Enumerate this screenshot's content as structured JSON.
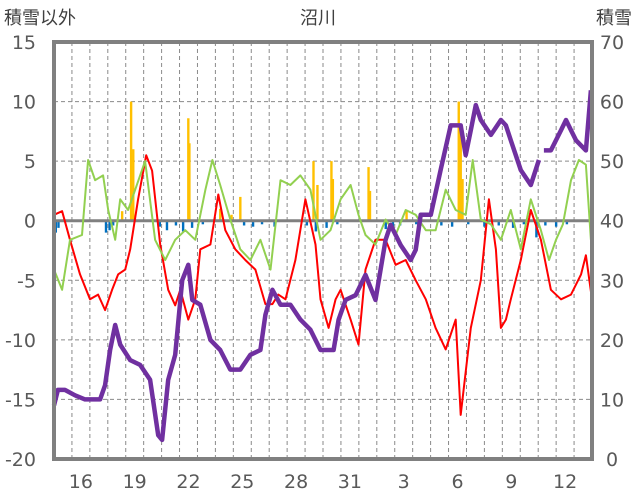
{
  "chart_data": {
    "type": "line",
    "title": "沼川",
    "ylabel_left": "積雪以外",
    "ylabel_right": "積雪",
    "ylim_left": [
      -20,
      15
    ],
    "ylim_right": [
      0,
      70
    ],
    "yticks_left": [
      "15",
      "10",
      "5",
      "0",
      "-5",
      "-10",
      "-15",
      "-20"
    ],
    "yticks_right": [
      "70",
      "60",
      "50",
      "40",
      "30",
      "20",
      "10",
      "0"
    ],
    "x_unit": "days since first plotted day",
    "xlim": [
      0,
      30
    ],
    "xticks": [
      {
        "x": 1.5,
        "label": "16"
      },
      {
        "x": 4.5,
        "label": "19"
      },
      {
        "x": 7.5,
        "label": "22"
      },
      {
        "x": 10.5,
        "label": "25"
      },
      {
        "x": 13.5,
        "label": "28"
      },
      {
        "x": 16.5,
        "label": "31"
      },
      {
        "x": 19.5,
        "label": "3"
      },
      {
        "x": 22.5,
        "label": "6"
      },
      {
        "x": 25.5,
        "label": "9"
      },
      {
        "x": 28.5,
        "label": "12"
      }
    ],
    "grid": true,
    "series": [
      {
        "name": "snow-depth",
        "axis": "right",
        "color": "#7030A0",
        "points": [
          [
            0,
            9
          ],
          [
            0.22,
            11.6
          ],
          [
            0.61,
            11.6
          ],
          [
            1.17,
            10.7
          ],
          [
            1.73,
            10
          ],
          [
            2.57,
            10
          ],
          [
            2.85,
            12.4
          ],
          [
            3.13,
            18.3
          ],
          [
            3.41,
            22.5
          ],
          [
            3.69,
            19.2
          ],
          [
            4.25,
            16.6
          ],
          [
            4.8,
            15.8
          ],
          [
            5.36,
            13.3
          ],
          [
            5.81,
            4
          ],
          [
            6.03,
            3.2
          ],
          [
            6.37,
            13.3
          ],
          [
            6.76,
            17.5
          ],
          [
            7.15,
            30
          ],
          [
            7.49,
            32.6
          ],
          [
            7.71,
            26.7
          ],
          [
            8.16,
            25.9
          ],
          [
            8.72,
            20
          ],
          [
            9.27,
            18.3
          ],
          [
            9.83,
            15
          ],
          [
            10.39,
            15
          ],
          [
            10.95,
            17.5
          ],
          [
            11.51,
            18.3
          ],
          [
            11.79,
            24.2
          ],
          [
            12.18,
            28.4
          ],
          [
            12.63,
            25.9
          ],
          [
            13.18,
            25.9
          ],
          [
            13.74,
            23.4
          ],
          [
            14.3,
            21.7
          ],
          [
            14.86,
            18.3
          ],
          [
            15.59,
            18.3
          ],
          [
            15.87,
            23.4
          ],
          [
            16.26,
            26.7
          ],
          [
            16.82,
            27.5
          ],
          [
            17.37,
            30.9
          ],
          [
            17.93,
            26.7
          ],
          [
            18.49,
            36.8
          ],
          [
            18.77,
            39.3
          ],
          [
            19.33,
            35.9
          ],
          [
            19.89,
            33.4
          ],
          [
            20.17,
            35.1
          ],
          [
            20.45,
            41
          ],
          [
            21.01,
            41
          ],
          [
            21.56,
            48.5
          ],
          [
            22.12,
            56
          ],
          [
            22.68,
            56
          ],
          [
            22.96,
            51
          ],
          [
            23.24,
            55.2
          ],
          [
            23.52,
            59.4
          ],
          [
            23.8,
            56.9
          ],
          [
            24.36,
            54.4
          ],
          [
            24.92,
            56.9
          ],
          [
            25.2,
            56
          ],
          [
            25.47,
            53.5
          ],
          [
            26.03,
            48.5
          ],
          [
            26.59,
            46
          ],
          [
            27.04,
            50.2
          ],
          [
            null,
            null
          ],
          [
            27.32,
            51.8
          ],
          [
            27.71,
            51.8
          ],
          [
            28.27,
            55.2
          ],
          [
            28.55,
            56.9
          ],
          [
            28.83,
            55.2
          ],
          [
            29.11,
            53.5
          ],
          [
            29.66,
            51.8
          ],
          [
            29.94,
            61.9
          ]
        ]
      },
      {
        "name": "series-red",
        "axis": "left",
        "color": "#FF0000",
        "points": [
          [
            0,
            0.5
          ],
          [
            0.45,
            0.8
          ],
          [
            0.89,
            -1.6
          ],
          [
            1.45,
            -4.5
          ],
          [
            2.01,
            -6.6
          ],
          [
            2.46,
            -6.2
          ],
          [
            2.85,
            -7.5
          ],
          [
            3.24,
            -5.8
          ],
          [
            3.58,
            -4.5
          ],
          [
            3.97,
            -4.1
          ],
          [
            4.25,
            -2.4
          ],
          [
            4.69,
            1.8
          ],
          [
            5.14,
            5.5
          ],
          [
            5.47,
            4.2
          ],
          [
            5.92,
            -2
          ],
          [
            6.37,
            -5.8
          ],
          [
            6.76,
            -7.1
          ],
          [
            7.04,
            -5.8
          ],
          [
            7.49,
            -8.3
          ],
          [
            7.88,
            -6.6
          ],
          [
            8.16,
            -2.4
          ],
          [
            8.72,
            -2
          ],
          [
            9.16,
            2.2
          ],
          [
            9.55,
            -0.8
          ],
          [
            10.11,
            -2.4
          ],
          [
            10.67,
            -3.3
          ],
          [
            11.23,
            -4.1
          ],
          [
            11.79,
            -7
          ],
          [
            12.18,
            -7
          ],
          [
            12.51,
            -6.2
          ],
          [
            12.91,
            -6.6
          ],
          [
            13.46,
            -3.3
          ],
          [
            14.02,
            1.8
          ],
          [
            14.58,
            -2
          ],
          [
            14.86,
            -6.6
          ],
          [
            15.31,
            -9
          ],
          [
            15.7,
            -6.6
          ],
          [
            15.98,
            -5.8
          ],
          [
            16.54,
            -8.3
          ],
          [
            16.98,
            -10.4
          ],
          [
            17.37,
            -4.1
          ],
          [
            17.93,
            -1.6
          ],
          [
            18.49,
            -1.6
          ],
          [
            19.05,
            -3.7
          ],
          [
            19.61,
            -3.3
          ],
          [
            20.17,
            -5
          ],
          [
            20.73,
            -6.6
          ],
          [
            21.28,
            -9
          ],
          [
            21.84,
            -10.8
          ],
          [
            22.4,
            -8.3
          ],
          [
            22.68,
            -16.3
          ],
          [
            23.24,
            -9
          ],
          [
            23.8,
            -5
          ],
          [
            24.25,
            1.8
          ],
          [
            24.64,
            -2.4
          ],
          [
            24.92,
            -9
          ],
          [
            25.2,
            -8.3
          ],
          [
            25.47,
            -6.6
          ],
          [
            26.03,
            -3.3
          ],
          [
            26.59,
            0.9
          ],
          [
            27.15,
            -1.6
          ],
          [
            27.71,
            -5.8
          ],
          [
            28.27,
            -6.6
          ],
          [
            28.83,
            -6.2
          ],
          [
            29.39,
            -4.5
          ],
          [
            29.66,
            -2.9
          ],
          [
            30,
            -6.6
          ]
        ]
      },
      {
        "name": "series-green",
        "axis": "left",
        "color": "#92D050",
        "points": [
          [
            0,
            -4.1
          ],
          [
            0.45,
            -5.8
          ],
          [
            0.89,
            -1.6
          ],
          [
            1.56,
            -1.2
          ],
          [
            1.9,
            5.1
          ],
          [
            2.29,
            3.4
          ],
          [
            2.74,
            3.8
          ],
          [
            3.02,
            0.9
          ],
          [
            3.41,
            -1.6
          ],
          [
            3.69,
            1.8
          ],
          [
            4.13,
            0.9
          ],
          [
            4.53,
            2.6
          ],
          [
            5.08,
            5
          ],
          [
            5.64,
            -1.6
          ],
          [
            6.2,
            -3.3
          ],
          [
            6.76,
            -1.6
          ],
          [
            7.32,
            -0.8
          ],
          [
            7.88,
            -1.6
          ],
          [
            8.44,
            2.6
          ],
          [
            8.83,
            5.1
          ],
          [
            9.27,
            3
          ],
          [
            9.83,
            0.1
          ],
          [
            10.39,
            -2.4
          ],
          [
            10.95,
            -3.3
          ],
          [
            11.51,
            -1.6
          ],
          [
            12.07,
            -4.1
          ],
          [
            12.63,
            3.4
          ],
          [
            13.18,
            3
          ],
          [
            13.74,
            3.8
          ],
          [
            14.3,
            2.6
          ],
          [
            14.86,
            -1.6
          ],
          [
            15.42,
            -0.8
          ],
          [
            15.98,
            1.8
          ],
          [
            16.54,
            3
          ],
          [
            16.98,
            0.5
          ],
          [
            17.37,
            -1.2
          ],
          [
            17.93,
            -2
          ],
          [
            18.49,
            0.1
          ],
          [
            19.05,
            -1.2
          ],
          [
            19.61,
            0.9
          ],
          [
            20.17,
            0.5
          ],
          [
            20.73,
            -0.8
          ],
          [
            21.28,
            -0.8
          ],
          [
            21.84,
            2.6
          ],
          [
            22.4,
            0.9
          ],
          [
            22.96,
            0.5
          ],
          [
            23.35,
            5.1
          ],
          [
            23.8,
            0.1
          ],
          [
            24.36,
            -0.3
          ],
          [
            24.92,
            -1.6
          ],
          [
            25.47,
            0.9
          ],
          [
            26.03,
            -2.4
          ],
          [
            26.59,
            1.8
          ],
          [
            27.15,
            -0.8
          ],
          [
            27.6,
            -3.3
          ],
          [
            27.99,
            -1.6
          ],
          [
            28.38,
            -0.3
          ],
          [
            28.83,
            3.4
          ],
          [
            29.27,
            5.1
          ],
          [
            29.66,
            4.7
          ],
          [
            29.94,
            -1.6
          ]
        ]
      }
    ],
    "bars_positive": {
      "name": "series-yellow",
      "axis": "left",
      "color": "#FFC000",
      "points": [
        [
          4.3,
          10
        ],
        [
          4.42,
          6
        ],
        [
          7.49,
          8.6
        ],
        [
          7.55,
          6.5
        ],
        [
          9.27,
          1
        ],
        [
          10.39,
          2
        ],
        [
          14.47,
          5
        ],
        [
          14.69,
          3
        ],
        [
          15.47,
          5
        ],
        [
          15.55,
          3.5
        ],
        [
          17.54,
          4.5
        ],
        [
          17.62,
          2.5
        ],
        [
          19.66,
          0.8
        ],
        [
          22.57,
          10
        ],
        [
          22.68,
          8
        ],
        [
          22.78,
          3.5
        ],
        [
          3.8,
          0.8
        ],
        [
          9.9,
          0.5
        ]
      ]
    },
    "bars_negative": {
      "name": "series-blue",
      "axis": "left",
      "color": "#0070C0",
      "points": [
        [
          0.1,
          -1
        ],
        [
          0.25,
          -0.6
        ],
        [
          2.9,
          -1
        ],
        [
          3.1,
          -0.8
        ],
        [
          3.3,
          -0.4
        ],
        [
          5.9,
          -0.5
        ],
        [
          6.3,
          -0.8
        ],
        [
          6.8,
          -0.4
        ],
        [
          7.2,
          -0.9
        ],
        [
          7.7,
          -0.6
        ],
        [
          8.3,
          -0.3
        ],
        [
          10.6,
          -0.4
        ],
        [
          11.1,
          -0.5
        ],
        [
          11.6,
          -0.3
        ],
        [
          12.3,
          -0.5
        ],
        [
          14.1,
          -0.4
        ],
        [
          14.6,
          -0.9
        ],
        [
          15.2,
          -0.6
        ],
        [
          15.8,
          -0.3
        ],
        [
          18.5,
          -0.7
        ],
        [
          18.9,
          -0.5
        ],
        [
          19.3,
          -0.4
        ],
        [
          20.2,
          -0.3
        ],
        [
          21.6,
          -0.4
        ],
        [
          22.2,
          -0.5
        ],
        [
          23.1,
          -0.3
        ],
        [
          24.0,
          -0.5
        ],
        [
          24.8,
          -0.4
        ],
        [
          25.6,
          -0.6
        ],
        [
          26.2,
          -0.3
        ],
        [
          26.9,
          -1.4
        ],
        [
          27.4,
          -0.4
        ],
        [
          28.0,
          -0.5
        ],
        [
          28.6,
          -0.3
        ]
      ]
    }
  }
}
